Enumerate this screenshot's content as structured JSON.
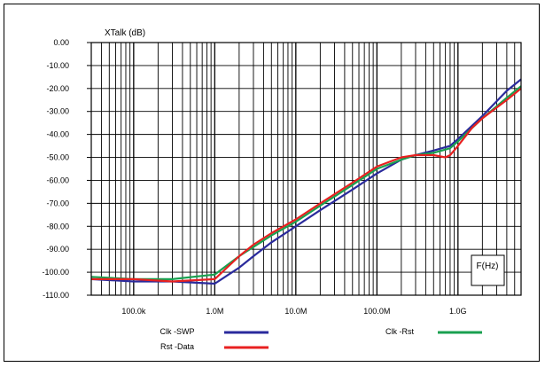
{
  "chart_data": {
    "type": "line",
    "title": "",
    "ylabel": "XTalk (dB)",
    "xlabel": "F(Hz)",
    "xscale": "log",
    "xlim": [
      30000,
      6000000000
    ],
    "ylim": [
      -110,
      0
    ],
    "grid": true,
    "legend_position": "bottom",
    "x_ticks": [
      {
        "value": 100000,
        "label": "100.0k"
      },
      {
        "value": 1000000,
        "label": "1.0M"
      },
      {
        "value": 10000000,
        "label": "10.0M"
      },
      {
        "value": 100000000,
        "label": "100.0M"
      },
      {
        "value": 1000000000,
        "label": "1.0G"
      }
    ],
    "y_ticks": [
      {
        "value": 0,
        "label": "0.00"
      },
      {
        "value": -10,
        "label": "-10.00"
      },
      {
        "value": -20,
        "label": "-20.00"
      },
      {
        "value": -30,
        "label": "-30.00"
      },
      {
        "value": -40,
        "label": "-40.00"
      },
      {
        "value": -50,
        "label": "-50.00"
      },
      {
        "value": -60,
        "label": "-60.00"
      },
      {
        "value": -70,
        "label": "-70.00"
      },
      {
        "value": -80,
        "label": "-80.00"
      },
      {
        "value": -90,
        "label": "-90.00"
      },
      {
        "value": -100,
        "label": "-100.00"
      },
      {
        "value": -110,
        "label": "-110.00"
      }
    ],
    "series": [
      {
        "name": "Clk -SWP",
        "color": "#2a2a9c",
        "x": [
          30000,
          100000,
          300000,
          1000000,
          2000000,
          3000000,
          5000000,
          10000000,
          20000000,
          50000000,
          100000000,
          200000000,
          300000000,
          500000000,
          800000000,
          1000000000,
          2000000000,
          4000000000,
          6000000000
        ],
        "y": [
          -103,
          -104,
          -104,
          -105,
          -98,
          -93,
          -87,
          -80,
          -73,
          -64,
          -57,
          -51,
          -49,
          -47,
          -45,
          -42,
          -32,
          -21,
          -16
        ]
      },
      {
        "name": "Rst -Data",
        "color": "#e82020",
        "x": [
          30000,
          100000,
          300000,
          1000000,
          2000000,
          3000000,
          5000000,
          10000000,
          20000000,
          50000000,
          100000000,
          200000000,
          300000000,
          500000000,
          700000000,
          800000000,
          1000000000,
          1500000000,
          2000000000,
          4000000000,
          6000000000
        ],
        "y": [
          -103,
          -103,
          -104,
          -103,
          -93,
          -88,
          -83,
          -77,
          -70,
          -61,
          -54,
          -50,
          -49,
          -49,
          -50,
          -49,
          -45,
          -37,
          -33,
          -25,
          -20
        ]
      },
      {
        "name": "Clk -Rst",
        "color": "#1aa050",
        "x": [
          30000,
          100000,
          300000,
          1000000,
          2000000,
          3000000,
          5000000,
          10000000,
          20000000,
          50000000,
          100000000,
          200000000,
          300000000,
          500000000,
          800000000,
          1000000000,
          2000000000,
          4000000000,
          6000000000
        ],
        "y": [
          -102,
          -103,
          -103,
          -101,
          -93,
          -89,
          -84,
          -78,
          -71,
          -62,
          -55,
          -51,
          -49,
          -48,
          -46,
          -43,
          -33,
          -24,
          -19
        ]
      }
    ]
  }
}
